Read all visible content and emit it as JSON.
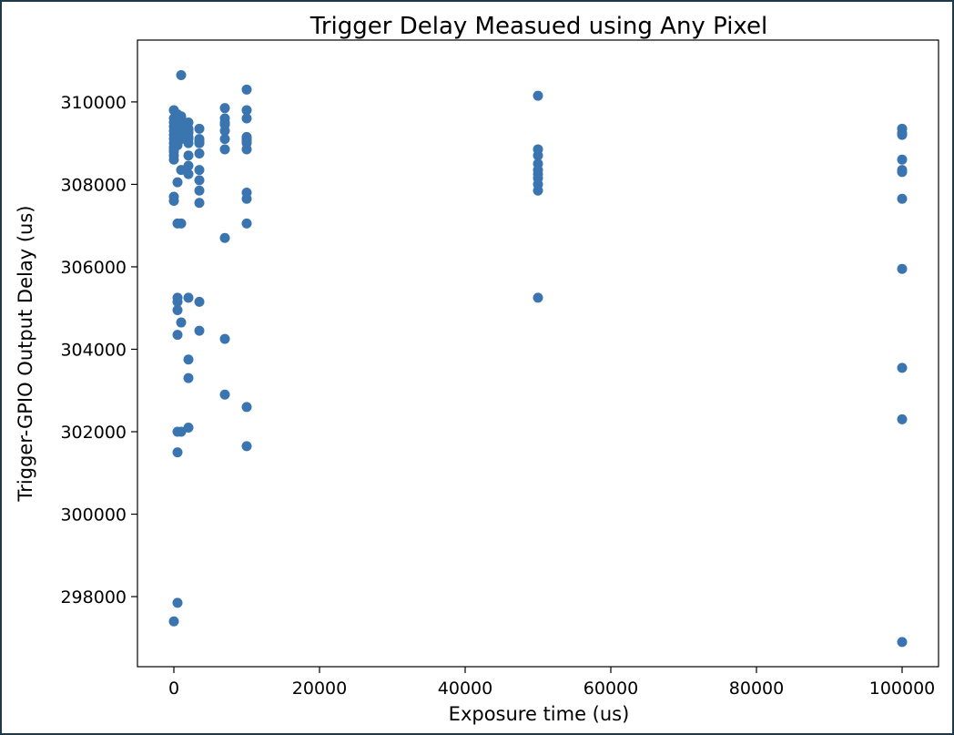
{
  "chart_data": {
    "type": "scatter",
    "title": "Trigger Delay Measued using Any Pixel",
    "xlabel": "Exposure time (us)",
    "ylabel": "Trigger-GPIO Output Delay (us)",
    "xlim": [
      -5000,
      105000
    ],
    "ylim": [
      296300,
      311500
    ],
    "xticks": [
      0,
      20000,
      40000,
      60000,
      80000,
      100000
    ],
    "yticks": [
      298000,
      300000,
      302000,
      304000,
      306000,
      308000,
      310000
    ],
    "grid": false,
    "legend": "none",
    "marker_color": "#3b75af",
    "series": [
      {
        "x": [
          0,
          0,
          0,
          0,
          0,
          0,
          0,
          0,
          0,
          0,
          0,
          0,
          0,
          0,
          0,
          0,
          500,
          500,
          500,
          500,
          500,
          500,
          500,
          500,
          500,
          500,
          500,
          500,
          500,
          500,
          500,
          500,
          500,
          1000,
          1000,
          1000,
          1000,
          1000,
          1000,
          1000,
          1000,
          1000,
          1000,
          1000,
          1000,
          2000,
          2000,
          2000,
          2000,
          2000,
          2000,
          2000,
          2000,
          2000,
          2000,
          2000,
          2000,
          2000,
          2000,
          3500,
          3500,
          3500,
          3500,
          3500,
          3500,
          3500,
          3500,
          3500,
          3500,
          3500,
          3500,
          7000,
          7000,
          7000,
          7000,
          7000,
          7000,
          7000,
          7000,
          7000,
          7000,
          10000,
          10000,
          10000,
          10000,
          10000,
          10000,
          10000,
          10000,
          10000,
          10000,
          10000,
          10000,
          10000,
          50000,
          50000,
          50000,
          50000,
          50000,
          50000,
          50000,
          50000,
          50000,
          50000,
          100000,
          100000,
          100000,
          100000,
          100000,
          100000,
          100000,
          100000,
          100000,
          100000,
          100000
        ],
        "y": [
          309800,
          309600,
          309400,
          309200,
          309100,
          309000,
          308900,
          308800,
          308700,
          308600,
          307700,
          307600,
          297400,
          309500,
          309300,
          308850,
          309700,
          309550,
          309350,
          309250,
          309150,
          309050,
          308950,
          308050,
          307050,
          305250,
          305150,
          304950,
          304350,
          302000,
          301500,
          297850,
          309450,
          310650,
          309600,
          309400,
          309300,
          309200,
          309100,
          308350,
          307050,
          304650,
          302000,
          309650,
          309500,
          309500,
          309350,
          309250,
          309150,
          308700,
          308450,
          308250,
          305250,
          303750,
          303300,
          302100,
          309300,
          309100,
          309000,
          309350,
          309100,
          309000,
          308750,
          308350,
          308100,
          307850,
          307550,
          305150,
          304450,
          309050,
          309000,
          309850,
          309600,
          309500,
          309300,
          309100,
          308850,
          306700,
          304250,
          302900,
          309450,
          310300,
          309800,
          309600,
          309150,
          309100,
          309050,
          307800,
          307650,
          307050,
          302600,
          301650,
          309000,
          308850,
          310150,
          308850,
          308700,
          308500,
          308350,
          308150,
          308000,
          307850,
          305250,
          308250,
          309350,
          309250,
          308600,
          308350,
          308300,
          307650,
          305950,
          303550,
          302300,
          296900,
          309200
        ]
      }
    ]
  }
}
